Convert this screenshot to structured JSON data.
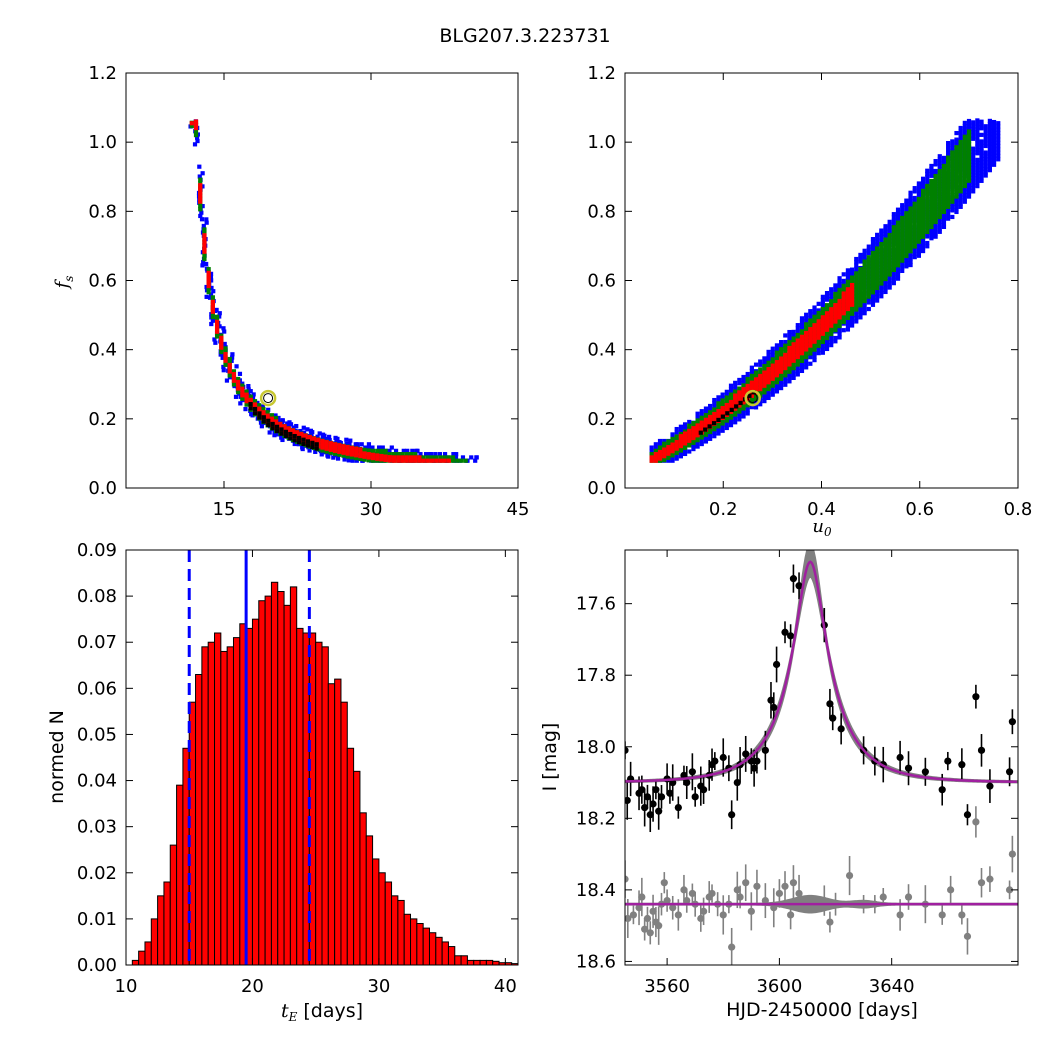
{
  "figure": {
    "title": "BLG207.3.223731"
  },
  "colors": {
    "outer": "#0000ff",
    "middle": "#008000",
    "inner": "#ff0000",
    "core": "#000000",
    "marker": "#c8c832",
    "bar": "#ff0000",
    "line": "#0000ff",
    "model": "#a020a0",
    "band": "#808080",
    "data": "#000000",
    "resid": "#808080"
  },
  "chart_data": [
    {
      "type": "heatmap",
      "panel": "top-left",
      "ylabel_var": "f",
      "ylabel_sub": "s",
      "xlabel": "",
      "xlim": [
        5,
        45
      ],
      "ylim": [
        0.0,
        1.2
      ],
      "xticks": [
        "15",
        "30",
        "45"
      ],
      "yticks": [
        "0.0",
        "0.2",
        "0.4",
        "0.6",
        "0.8",
        "1.0",
        "1.2"
      ],
      "relation": "power",
      "curve": {
        "a": 11,
        "c": 0.02,
        "k": 0.135,
        "p": 2,
        "t_range": [
          11.5,
          41
        ]
      },
      "best_fit": {
        "x": 19.5,
        "y": 0.26
      },
      "core_range": [
        17.5,
        24.5
      ]
    },
    {
      "type": "heatmap",
      "panel": "top-right",
      "xlabel_var": "u",
      "xlabel_sub": "0",
      "ylabel": "",
      "xlim": [
        0.0,
        0.8
      ],
      "ylim": [
        0.0,
        1.2
      ],
      "xticks": [
        "0.2",
        "0.4",
        "0.6",
        "0.8"
      ],
      "yticks": [
        "0.0",
        "0.2",
        "0.4",
        "0.6",
        "0.8",
        "1.0",
        "1.2"
      ],
      "relation": "rising",
      "best_fit": {
        "x": 0.26,
        "y": 0.26
      },
      "core_range": [
        0.15,
        0.26
      ]
    },
    {
      "type": "bar",
      "panel": "bottom-left",
      "xlabel_var": "t",
      "xlabel_sub": "E",
      "xlabel_unit": " [days]",
      "ylabel": "normed N",
      "xlim": [
        10,
        41
      ],
      "ylim": [
        0,
        0.09
      ],
      "xticks": [
        "10",
        "20",
        "30",
        "40"
      ],
      "yticks": [
        "0.00",
        "0.01",
        "0.02",
        "0.03",
        "0.04",
        "0.05",
        "0.06",
        "0.07",
        "0.08",
        "0.09"
      ],
      "bin_start": 10.5,
      "bin_width": 0.5,
      "values": [
        0.001,
        0.003,
        0.005,
        0.01,
        0.015,
        0.018,
        0.026,
        0.039,
        0.047,
        0.057,
        0.063,
        0.069,
        0.07,
        0.072,
        0.068,
        0.069,
        0.071,
        0.074,
        0.073,
        0.075,
        0.079,
        0.08,
        0.083,
        0.081,
        0.078,
        0.082,
        0.073,
        0.072,
        0.072,
        0.07,
        0.069,
        0.061,
        0.062,
        0.057,
        0.047,
        0.042,
        0.033,
        0.028,
        0.023,
        0.02,
        0.018,
        0.015,
        0.014,
        0.011,
        0.01,
        0.009,
        0.008,
        0.007,
        0.006,
        0.005,
        0.004,
        0.002,
        0.002,
        0.001,
        0.001,
        0.001,
        0.001,
        0.0008,
        0.0005,
        0.0005,
        0.0003
      ],
      "vlines": {
        "median": 19.5,
        "lower": 15.0,
        "upper": 24.5
      }
    },
    {
      "type": "scatter",
      "panel": "bottom-right",
      "xlabel": "HJD-2450000 [days]",
      "ylabel": "I [mag]",
      "xlim": [
        3545,
        3685
      ],
      "ylim": [
        18.61,
        17.45
      ],
      "xticks": [
        "3560",
        "3600",
        "3640"
      ],
      "yticks": [
        "17.6",
        "17.8",
        "18.0",
        "18.2",
        "18.4",
        "18.6"
      ],
      "model": {
        "t0": 3611,
        "tE": 19.5,
        "u0": 0.26,
        "fs": 0.26,
        "mbase": 18.1
      },
      "resid_baseline": 18.44,
      "photometry": [
        [
          3545,
          18.01
        ],
        [
          3545.8,
          18.15
        ],
        [
          3547,
          18.09
        ],
        [
          3550,
          18.13
        ],
        [
          3551,
          18.12
        ],
        [
          3552,
          18.17
        ],
        [
          3553,
          18.14
        ],
        [
          3554,
          18.19
        ],
        [
          3555,
          18.16
        ],
        [
          3556,
          18.12
        ],
        [
          3557,
          18.18
        ],
        [
          3558,
          18.14
        ],
        [
          3560,
          18.09
        ],
        [
          3561,
          18.13
        ],
        [
          3562,
          18.1
        ],
        [
          3564,
          18.17
        ],
        [
          3566,
          18.08
        ],
        [
          3567,
          18.1
        ],
        [
          3569,
          18.07
        ],
        [
          3570,
          18.14
        ],
        [
          3572,
          18.11
        ],
        [
          3573,
          18.12
        ],
        [
          3575,
          18.08
        ],
        [
          3576,
          18.05
        ],
        [
          3577,
          18.04
        ],
        [
          3580,
          18.03
        ],
        [
          3582,
          18.06
        ],
        [
          3583,
          18.19
        ],
        [
          3585,
          18.1
        ],
        [
          3586,
          18.05
        ],
        [
          3588,
          18.02
        ],
        [
          3590,
          18.04
        ],
        [
          3591,
          18.06
        ],
        [
          3592,
          18.04
        ],
        [
          3595,
          18.01
        ],
        [
          3597,
          17.87
        ],
        [
          3598,
          17.89
        ],
        [
          3599,
          17.77
        ],
        [
          3602,
          17.68
        ],
        [
          3604,
          17.69
        ],
        [
          3605,
          17.53
        ],
        [
          3607,
          17.55
        ],
        [
          3616,
          17.66
        ],
        [
          3618,
          17.88
        ],
        [
          3619,
          17.92
        ],
        [
          3622,
          17.95
        ],
        [
          3630,
          18.01
        ],
        [
          3634,
          18.04
        ],
        [
          3637,
          18.05
        ],
        [
          3643,
          18.03
        ],
        [
          3646,
          18.06
        ],
        [
          3652,
          18.07
        ],
        [
          3658,
          18.12
        ],
        [
          3660,
          18.04
        ],
        [
          3665,
          18.05
        ],
        [
          3667,
          18.19
        ],
        [
          3670,
          17.86
        ],
        [
          3672,
          18.01
        ],
        [
          3675,
          18.11
        ],
        [
          3682,
          18.07
        ],
        [
          3683,
          17.93
        ]
      ],
      "residuals": [
        [
          3545,
          18.37
        ],
        [
          3546,
          18.48
        ],
        [
          3548,
          18.47
        ],
        [
          3550,
          18.45
        ],
        [
          3551,
          18.42
        ],
        [
          3552,
          18.51
        ],
        [
          3553,
          18.48
        ],
        [
          3554,
          18.52
        ],
        [
          3555,
          18.46
        ],
        [
          3556,
          18.49
        ],
        [
          3557,
          18.5
        ],
        [
          3558,
          18.44
        ],
        [
          3559,
          18.38
        ],
        [
          3560,
          18.43
        ],
        [
          3562,
          18.45
        ],
        [
          3564,
          18.47
        ],
        [
          3566,
          18.4
        ],
        [
          3567,
          18.43
        ],
        [
          3569,
          18.41
        ],
        [
          3570,
          18.44
        ],
        [
          3572,
          18.48
        ],
        [
          3573,
          18.46
        ],
        [
          3575,
          18.42
        ],
        [
          3576,
          18.41
        ],
        [
          3578,
          18.44
        ],
        [
          3580,
          18.47
        ],
        [
          3582,
          18.44
        ],
        [
          3583,
          18.56
        ],
        [
          3585,
          18.4
        ],
        [
          3586,
          18.42
        ],
        [
          3588,
          18.38
        ],
        [
          3590,
          18.46
        ],
        [
          3592,
          18.39
        ],
        [
          3595,
          18.43
        ],
        [
          3598,
          18.45
        ],
        [
          3600,
          18.41
        ],
        [
          3602,
          18.39
        ],
        [
          3604,
          18.47
        ],
        [
          3605,
          18.38
        ],
        [
          3607,
          18.41
        ],
        [
          3616,
          18.43
        ],
        [
          3618,
          18.49
        ],
        [
          3620,
          18.44
        ],
        [
          3625,
          18.36
        ],
        [
          3630,
          18.44
        ],
        [
          3634,
          18.44
        ],
        [
          3637,
          18.42
        ],
        [
          3643,
          18.47
        ],
        [
          3646,
          18.42
        ],
        [
          3652,
          18.44
        ],
        [
          3658,
          18.47
        ],
        [
          3661,
          18.4
        ],
        [
          3665,
          18.47
        ],
        [
          3667,
          18.53
        ],
        [
          3670,
          18.21
        ],
        [
          3672,
          18.38
        ],
        [
          3675,
          18.37
        ],
        [
          3682,
          18.4
        ],
        [
          3683,
          18.3
        ]
      ]
    }
  ]
}
